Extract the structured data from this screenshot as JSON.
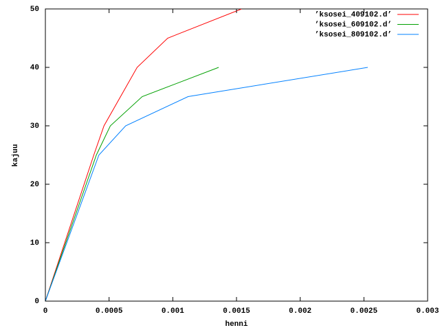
{
  "chart_data": {
    "type": "line",
    "xlabel": "henni",
    "ylabel": "kajuu",
    "xlim": [
      0,
      0.003
    ],
    "xticks": [
      0,
      0.0005,
      0.001,
      0.0015,
      0.002,
      0.0025,
      0.003
    ],
    "ylim": [
      0,
      50
    ],
    "yticks": [
      0,
      10,
      20,
      30,
      40,
      50
    ],
    "legend": "upper right",
    "series": [
      {
        "name": "’ksosei_409102.d’",
        "color": "#ff0000",
        "x": [
          0,
          0.00038,
          0.00046,
          0.00072,
          0.00096,
          0.00154
        ],
        "values": [
          0,
          25,
          30,
          40,
          45,
          50
        ]
      },
      {
        "name": "’ksosei_609102.d’",
        "color": "#00a000",
        "x": [
          0,
          0.0004,
          0.00051,
          0.00076,
          0.00136
        ],
        "values": [
          0,
          25,
          30,
          35,
          40
        ]
      },
      {
        "name": "’ksosei_809102.d’",
        "color": "#0080ff",
        "x": [
          0,
          0.00042,
          0.00063,
          0.00112,
          0.00253
        ],
        "values": [
          0,
          25,
          30,
          35,
          40
        ]
      }
    ]
  }
}
